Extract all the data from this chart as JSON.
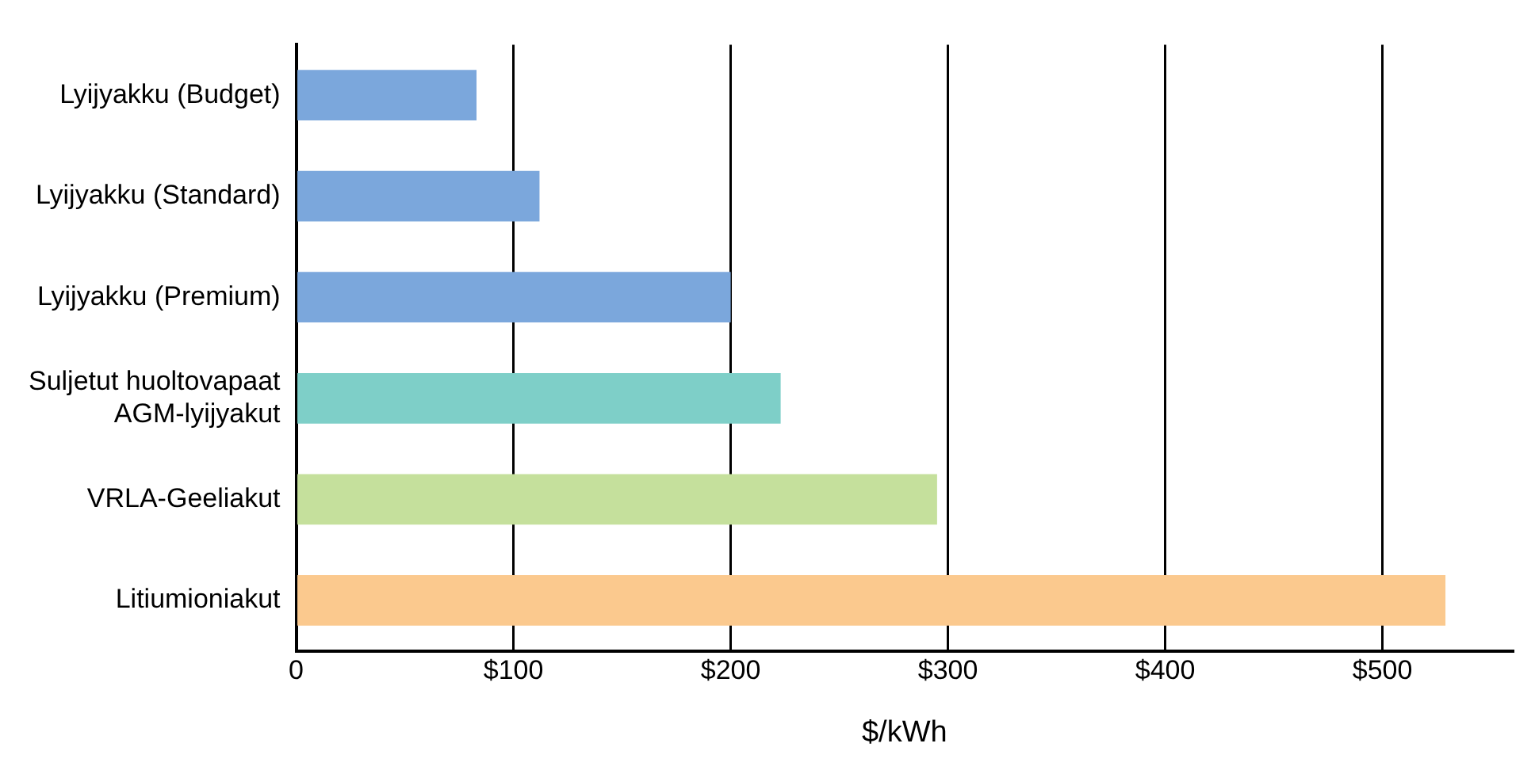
{
  "chart_data": {
    "type": "bar",
    "orientation": "horizontal",
    "xlabel": "$/kWh",
    "categories": [
      "Lyijyakku (Budget)",
      "Lyijyakku (Standard)",
      "Lyijyakku (Premium)",
      "Suljetut huoltovapaat AGM-lyijyakut",
      "VRLA-Geeliakut",
      "Litiumioniakut"
    ],
    "values": [
      83,
      112,
      200,
      223,
      295,
      529
    ],
    "colors": [
      "#7ba7dc",
      "#7ba7dc",
      "#7ba7dc",
      "#7ecfc8",
      "#c5e09c",
      "#fbc98e"
    ],
    "xlim": [
      0,
      560
    ],
    "xticks": [
      {
        "value": 0,
        "label": "0"
      },
      {
        "value": 100,
        "label": "$100"
      },
      {
        "value": 200,
        "label": "$200"
      },
      {
        "value": 300,
        "label": "$300"
      },
      {
        "value": 400,
        "label": "$400"
      },
      {
        "value": 500,
        "label": "$500"
      }
    ],
    "grid": "x",
    "legend": false
  }
}
